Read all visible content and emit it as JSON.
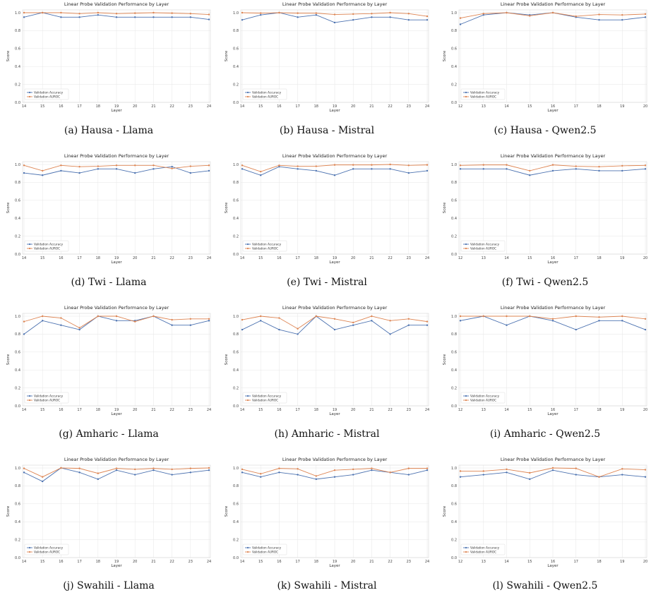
{
  "colors": {
    "accuracy": "#4c72b0",
    "auroc": "#dd8452",
    "grid": "#e6e6e6"
  },
  "chart_data": [
    {
      "type": "line",
      "caption": "(a) Hausa - Llama",
      "title": "Linear Probe Validation Performance by Layer",
      "xlabel": "Layer",
      "ylabel": "Score",
      "ylim": [
        0,
        1
      ],
      "yticks": [
        "0.0",
        "0.2",
        "0.4",
        "0.6",
        "0.8",
        "1.0"
      ],
      "grid": true,
      "legend": "lower left",
      "x": [
        14,
        15,
        16,
        17,
        18,
        19,
        20,
        21,
        22,
        23,
        24
      ],
      "series": [
        {
          "name": "Validation Accuracy",
          "values": [
            0.95,
            1.0,
            0.95,
            0.95,
            0.975,
            0.95,
            0.95,
            0.95,
            0.95,
            0.95,
            0.925
          ]
        },
        {
          "name": "Validation AUROC",
          "values": [
            1.0,
            1.0,
            1.0,
            0.99,
            1.0,
            0.99,
            0.995,
            1.0,
            0.995,
            0.99,
            0.98
          ]
        }
      ]
    },
    {
      "type": "line",
      "caption": "(b) Hausa - Mistral",
      "title": "Linear Probe Validation Performance by Layer",
      "xlabel": "Layer",
      "ylabel": "Score",
      "ylim": [
        0,
        1
      ],
      "yticks": [
        "0.0",
        "0.2",
        "0.4",
        "0.6",
        "0.8",
        "1.0"
      ],
      "grid": true,
      "legend": "lower left",
      "x": [
        14,
        15,
        16,
        17,
        18,
        19,
        20,
        21,
        22,
        23,
        24
      ],
      "series": [
        {
          "name": "Validation Accuracy",
          "values": [
            0.92,
            0.975,
            1.0,
            0.95,
            0.975,
            0.89,
            0.92,
            0.95,
            0.95,
            0.92,
            0.92
          ]
        },
        {
          "name": "Validation AUROC",
          "values": [
            1.0,
            0.995,
            1.0,
            0.995,
            0.995,
            0.98,
            0.985,
            0.99,
            1.0,
            0.99,
            0.96
          ]
        }
      ]
    },
    {
      "type": "line",
      "caption": "(c) Hausa - Qwen2.5",
      "title": "Linear Probe Validation Performance by Layer",
      "xlabel": "Layer",
      "ylabel": "Score",
      "ylim": [
        0,
        1
      ],
      "yticks": [
        "0.0",
        "0.2",
        "0.4",
        "0.6",
        "0.8",
        "1.0"
      ],
      "grid": true,
      "legend": "lower left",
      "x": [
        12,
        13,
        14,
        15,
        16,
        17,
        18,
        19,
        20
      ],
      "series": [
        {
          "name": "Validation Accuracy",
          "values": [
            0.87,
            0.975,
            1.0,
            0.975,
            1.0,
            0.95,
            0.92,
            0.92,
            0.95
          ]
        },
        {
          "name": "Validation AUROC",
          "values": [
            0.94,
            0.99,
            1.0,
            0.965,
            1.0,
            0.96,
            0.98,
            0.975,
            0.985
          ]
        }
      ]
    },
    {
      "type": "line",
      "caption": "(d) Twi - Llama",
      "title": "Linear Probe Validation Performance by Layer",
      "xlabel": "Layer",
      "ylabel": "Score",
      "ylim": [
        0,
        1
      ],
      "yticks": [
        "0.0",
        "0.2",
        "0.4",
        "0.6",
        "0.8",
        "1.0"
      ],
      "grid": true,
      "legend": "lower left",
      "x": [
        14,
        15,
        16,
        17,
        18,
        19,
        20,
        21,
        22,
        23,
        24
      ],
      "series": [
        {
          "name": "Validation Accuracy",
          "values": [
            0.905,
            0.88,
            0.93,
            0.905,
            0.95,
            0.95,
            0.905,
            0.95,
            0.975,
            0.905,
            0.93
          ]
        },
        {
          "name": "Validation AUROC",
          "values": [
            0.99,
            0.93,
            0.99,
            0.975,
            0.98,
            0.99,
            0.99,
            0.99,
            0.955,
            0.98,
            0.99
          ]
        }
      ]
    },
    {
      "type": "line",
      "caption": "(e) Twi - Mistral",
      "title": "Linear Probe Validation Performance by Layer",
      "xlabel": "Layer",
      "ylabel": "Score",
      "ylim": [
        0,
        1
      ],
      "yticks": [
        "0.0",
        "0.2",
        "0.4",
        "0.6",
        "0.8",
        "1.0"
      ],
      "grid": true,
      "legend": "lower left",
      "x": [
        14,
        15,
        16,
        17,
        18,
        19,
        20,
        21,
        22,
        23,
        24
      ],
      "series": [
        {
          "name": "Validation Accuracy",
          "values": [
            0.95,
            0.88,
            0.975,
            0.95,
            0.93,
            0.88,
            0.95,
            0.95,
            0.95,
            0.905,
            0.93
          ]
        },
        {
          "name": "Validation AUROC",
          "values": [
            0.99,
            0.92,
            0.99,
            0.98,
            0.98,
            0.995,
            0.995,
            0.995,
            1.0,
            0.99,
            0.995
          ]
        }
      ]
    },
    {
      "type": "line",
      "caption": "(f) Twi - Qwen2.5",
      "title": "Linear Probe Validation Performance by Layer",
      "xlabel": "Layer",
      "ylabel": "Score",
      "ylim": [
        0,
        1
      ],
      "yticks": [
        "0.0",
        "0.2",
        "0.4",
        "0.6",
        "0.8",
        "1.0"
      ],
      "grid": true,
      "legend": "lower left",
      "x": [
        12,
        13,
        14,
        15,
        16,
        17,
        18,
        19,
        20
      ],
      "series": [
        {
          "name": "Validation Accuracy",
          "values": [
            0.95,
            0.95,
            0.95,
            0.88,
            0.93,
            0.95,
            0.93,
            0.93,
            0.95
          ]
        },
        {
          "name": "Validation AUROC",
          "values": [
            0.99,
            0.995,
            0.995,
            0.93,
            0.995,
            0.98,
            0.975,
            0.985,
            0.99
          ]
        }
      ]
    },
    {
      "type": "line",
      "caption": "(g) Amharic - Llama",
      "title": "Linear Probe Validation Performance by Layer",
      "xlabel": "Layer",
      "ylabel": "Score",
      "ylim": [
        0,
        1
      ],
      "yticks": [
        "0.0",
        "0.2",
        "0.4",
        "0.6",
        "0.8",
        "1.0"
      ],
      "grid": true,
      "legend": "lower left",
      "x": [
        14,
        15,
        16,
        17,
        18,
        19,
        20,
        21,
        22,
        23,
        24
      ],
      "series": [
        {
          "name": "Validation Accuracy",
          "values": [
            0.8,
            0.95,
            0.9,
            0.85,
            1.0,
            0.95,
            0.95,
            1.0,
            0.9,
            0.9,
            0.95
          ]
        },
        {
          "name": "Validation AUROC",
          "values": [
            0.94,
            1.0,
            0.98,
            0.87,
            1.0,
            1.0,
            0.94,
            1.0,
            0.96,
            0.97,
            0.97
          ]
        }
      ]
    },
    {
      "type": "line",
      "caption": "(h) Amharic - Mistral",
      "title": "Linear Probe Validation Performance by Layer",
      "xlabel": "Layer",
      "ylabel": "Score",
      "ylim": [
        0,
        1
      ],
      "yticks": [
        "0.0",
        "0.2",
        "0.4",
        "0.6",
        "0.8",
        "1.0"
      ],
      "grid": true,
      "legend": "lower left",
      "x": [
        14,
        15,
        16,
        17,
        18,
        19,
        20,
        21,
        22,
        23,
        24
      ],
      "series": [
        {
          "name": "Validation Accuracy",
          "values": [
            0.85,
            0.95,
            0.85,
            0.8,
            1.0,
            0.85,
            0.9,
            0.95,
            0.8,
            0.9,
            0.9
          ]
        },
        {
          "name": "Validation AUROC",
          "values": [
            0.96,
            1.0,
            0.98,
            0.86,
            1.0,
            0.97,
            0.93,
            1.0,
            0.95,
            0.97,
            0.94
          ]
        }
      ]
    },
    {
      "type": "line",
      "caption": "(i) Amharic - Qwen2.5",
      "title": "Linear Probe Validation Performance by Layer",
      "xlabel": "Layer",
      "ylabel": "Score",
      "ylim": [
        0,
        1
      ],
      "yticks": [
        "0.0",
        "0.2",
        "0.4",
        "0.6",
        "0.8",
        "1.0"
      ],
      "grid": true,
      "legend": "lower left",
      "x": [
        12,
        13,
        14,
        15,
        16,
        17,
        18,
        19,
        20
      ],
      "series": [
        {
          "name": "Validation Accuracy",
          "values": [
            0.95,
            1.0,
            0.9,
            1.0,
            0.95,
            0.85,
            0.95,
            0.95,
            0.85
          ]
        },
        {
          "name": "Validation AUROC",
          "values": [
            1.0,
            1.0,
            1.0,
            1.0,
            0.97,
            1.0,
            0.99,
            1.0,
            0.97
          ]
        }
      ]
    },
    {
      "type": "line",
      "caption": "(j) Swahili - Llama",
      "title": "Linear Probe Validation Performance by Layer",
      "xlabel": "Layer",
      "ylabel": "Score",
      "ylim": [
        0,
        1
      ],
      "yticks": [
        "0.0",
        "0.2",
        "0.4",
        "0.6",
        "0.8",
        "1.0"
      ],
      "grid": true,
      "legend": "lower left",
      "x": [
        14,
        15,
        16,
        17,
        18,
        19,
        20,
        21,
        22,
        23,
        24
      ],
      "series": [
        {
          "name": "Validation Accuracy",
          "values": [
            0.95,
            0.85,
            1.0,
            0.95,
            0.875,
            0.975,
            0.925,
            0.975,
            0.925,
            0.95,
            0.975
          ]
        },
        {
          "name": "Validation AUROC",
          "values": [
            0.995,
            0.9,
            1.0,
            0.995,
            0.94,
            0.995,
            0.985,
            0.995,
            0.985,
            0.995,
            1.0
          ]
        }
      ]
    },
    {
      "type": "line",
      "caption": "(k) Swahili - Mistral",
      "title": "Linear Probe Validation Performance by Layer",
      "xlabel": "Layer",
      "ylabel": "Score",
      "ylim": [
        0,
        1
      ],
      "yticks": [
        "0.0",
        "0.2",
        "0.4",
        "0.6",
        "0.8",
        "1.0"
      ],
      "grid": true,
      "legend": "lower left",
      "x": [
        14,
        15,
        16,
        17,
        18,
        19,
        20,
        21,
        22,
        23,
        24
      ],
      "series": [
        {
          "name": "Validation Accuracy",
          "values": [
            0.95,
            0.9,
            0.95,
            0.925,
            0.875,
            0.9,
            0.925,
            0.975,
            0.95,
            0.925,
            0.975
          ]
        },
        {
          "name": "Validation AUROC",
          "values": [
            0.985,
            0.935,
            0.995,
            0.99,
            0.91,
            0.975,
            0.985,
            0.995,
            0.95,
            0.995,
            0.995
          ]
        }
      ]
    },
    {
      "type": "line",
      "caption": "(l) Swahili - Qwen2.5",
      "title": "Linear Probe Validation Performance by Layer",
      "xlabel": "Layer",
      "ylabel": "Score",
      "ylim": [
        0,
        1
      ],
      "yticks": [
        "0.0",
        "0.2",
        "0.4",
        "0.6",
        "0.8",
        "1.0"
      ],
      "grid": true,
      "legend": "lower left",
      "x": [
        12,
        13,
        14,
        15,
        16,
        17,
        18,
        19,
        20
      ],
      "series": [
        {
          "name": "Validation Accuracy",
          "values": [
            0.9,
            0.925,
            0.95,
            0.875,
            0.975,
            0.925,
            0.9,
            0.925,
            0.9
          ]
        },
        {
          "name": "Validation AUROC",
          "values": [
            0.965,
            0.965,
            0.985,
            0.945,
            1.0,
            0.995,
            0.9,
            0.99,
            0.98
          ]
        }
      ]
    }
  ]
}
